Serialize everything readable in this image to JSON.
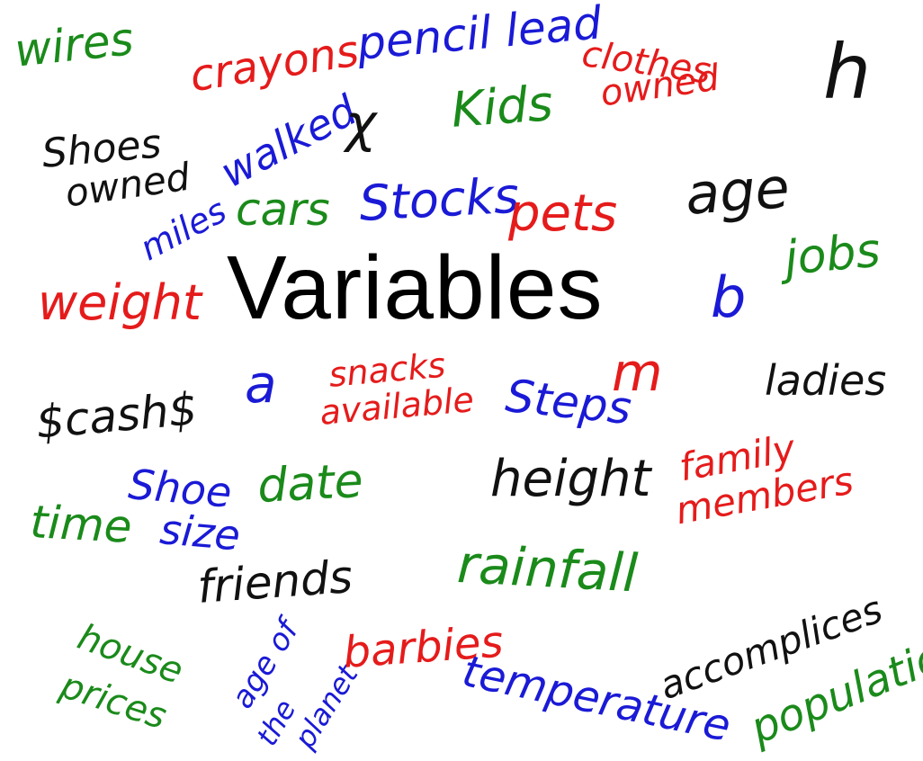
{
  "title": "Variables",
  "colors": {
    "green": "#1a8a1a",
    "red": "#e51b1b",
    "blue": "#1a1ad6",
    "black": "#111111"
  },
  "words": {
    "wires": "wires",
    "crayons": "crayons",
    "pencil_lead": "pencil lead",
    "clothes": "clothes",
    "owned_clothes": "owned",
    "h": "h",
    "shoes": "Shoes",
    "owned_shoes": "owned",
    "miles": "miles",
    "walked": "walked",
    "x": "χ",
    "kids": "Kids",
    "cars": "cars",
    "stocks": "Stocks",
    "pets": "pets",
    "age": "age",
    "jobs": "jobs",
    "weight": "weight",
    "b": "b",
    "cash": "$cash$",
    "a": "a",
    "snacks": "snacks",
    "available": "available",
    "steps": "Steps",
    "m": "m",
    "ladies": "ladies",
    "shoe": "Shoe",
    "size": "size",
    "time": "time",
    "date": "date",
    "height": "height",
    "family": "family",
    "members": "members",
    "rainfall": "rainfall",
    "friends": "friends",
    "house": "house",
    "prices": "prices",
    "age_of": "age of",
    "the": "the",
    "planet": "planet",
    "barbies": "barbies",
    "temperature": "temperature",
    "accomplices": "accomplices",
    "population": "population"
  }
}
